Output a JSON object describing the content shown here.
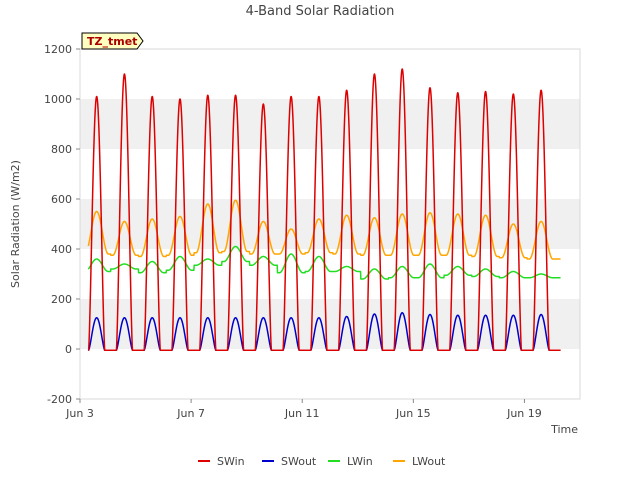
{
  "chart_data": {
    "type": "line",
    "title": "4-Band Solar Radiation",
    "xlabel": "Time",
    "ylabel": "Solar Radiation (W/m2)",
    "station_label": "TZ_tmet",
    "ylim": [
      -200,
      1200
    ],
    "yticks": [
      -200,
      0,
      200,
      400,
      600,
      800,
      1000,
      1200
    ],
    "xlim": [
      3.0,
      21.0
    ],
    "xticks": [
      {
        "day": 3,
        "label": "Jun 3"
      },
      {
        "day": 7,
        "label": "Jun 7"
      },
      {
        "day": 11,
        "label": "Jun 11"
      },
      {
        "day": 15,
        "label": "Jun 15"
      },
      {
        "day": 19,
        "label": "Jun 19"
      }
    ],
    "grid": "horizontal alternating bands",
    "legend_position": "bottom",
    "x_start_day": 3.3,
    "x_end_day": 20.3,
    "day_centers": [
      3.6,
      4.6,
      5.6,
      6.6,
      7.6,
      8.6,
      9.6,
      10.6,
      11.6,
      12.6,
      13.6,
      14.6,
      15.6,
      16.6,
      17.6,
      18.6,
      19.6
    ],
    "series": [
      {
        "name": "SWin",
        "color": "#dd0000",
        "night": -5,
        "peak_values": [
          1010,
          1100,
          1010,
          1000,
          1015,
          1015,
          980,
          1010,
          1010,
          1035,
          1100,
          1120,
          1045,
          1025,
          1030,
          1020,
          1035
        ]
      },
      {
        "name": "SWout",
        "color": "#0000cc",
        "night": -5,
        "peak_values": [
          125,
          125,
          125,
          125,
          125,
          125,
          125,
          125,
          125,
          130,
          140,
          145,
          138,
          135,
          135,
          135,
          138
        ]
      },
      {
        "name": "LWin",
        "color": "#22dd22",
        "baseline_values": [
          310,
          320,
          305,
          315,
          335,
          350,
          335,
          305,
          310,
          310,
          280,
          285,
          285,
          295,
          290,
          285,
          285
        ],
        "peak_values": [
          360,
          340,
          350,
          370,
          360,
          410,
          370,
          380,
          370,
          330,
          320,
          330,
          340,
          330,
          320,
          310,
          300
        ]
      },
      {
        "name": "LWout",
        "color": "#ffa500",
        "baseline_values": [
          380,
          375,
          370,
          375,
          385,
          390,
          380,
          380,
          385,
          380,
          375,
          375,
          375,
          375,
          370,
          365,
          360
        ],
        "peak_values": [
          550,
          510,
          520,
          530,
          580,
          595,
          510,
          480,
          520,
          535,
          525,
          540,
          545,
          540,
          535,
          500,
          510
        ]
      }
    ]
  }
}
